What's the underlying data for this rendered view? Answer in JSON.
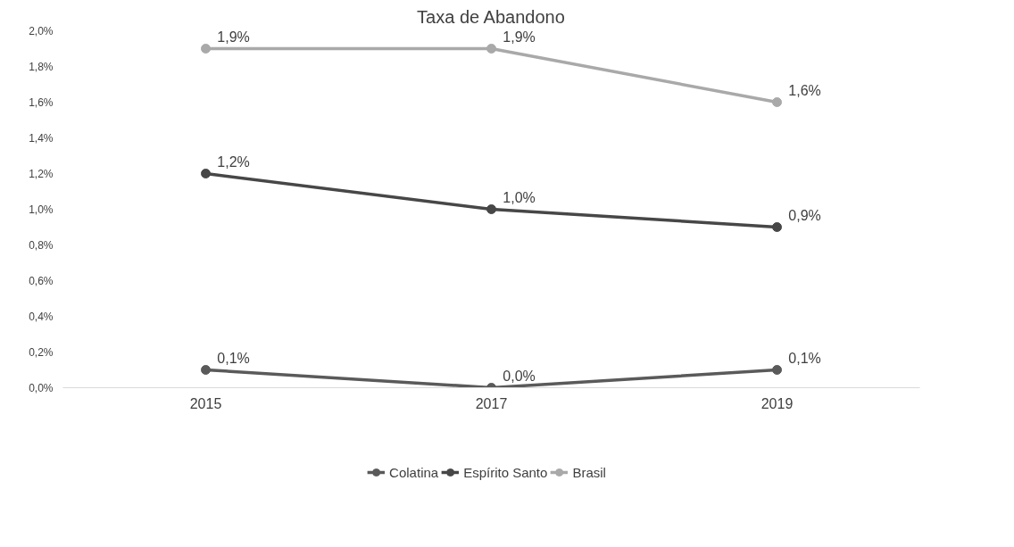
{
  "chart_data": {
    "type": "line",
    "title": "Taxa de Abandono",
    "categories": [
      "2015",
      "2017",
      "2019"
    ],
    "series": [
      {
        "name": "Colatina",
        "color": "#5a5a5a",
        "values": [
          0.1,
          0.0,
          0.1
        ],
        "value_labels": [
          "0,1%",
          "0,0%",
          "0,1%"
        ]
      },
      {
        "name": "Espírito Santo",
        "color": "#474747",
        "values": [
          1.2,
          1.0,
          0.9
        ],
        "value_labels": [
          "1,2%",
          "1,0%",
          "0,9%"
        ]
      },
      {
        "name": "Brasil",
        "color": "#a9a9a9",
        "values": [
          1.9,
          1.9,
          1.6
        ],
        "value_labels": [
          "1,9%",
          "1,9%",
          "1,6%"
        ]
      }
    ],
    "ylim": [
      0,
      2
    ],
    "yticks": [
      {
        "value": 0,
        "label": "0,0%"
      },
      {
        "value": 0.2,
        "label": "0,2%"
      },
      {
        "value": 0.4,
        "label": "0,4%"
      },
      {
        "value": 0.6,
        "label": "0,6%"
      },
      {
        "value": 0.8,
        "label": "0,8%"
      },
      {
        "value": 1.0,
        "label": "1,0%"
      },
      {
        "value": 1.2,
        "label": "1,2%"
      },
      {
        "value": 1.4,
        "label": "1,4%"
      },
      {
        "value": 1.6,
        "label": "1,6%"
      },
      {
        "value": 1.8,
        "label": "1,8%"
      },
      {
        "value": 2.0,
        "label": "2,0%"
      }
    ],
    "grid": false,
    "legend": "bottom",
    "marker": "circle",
    "line_style": "solid"
  }
}
